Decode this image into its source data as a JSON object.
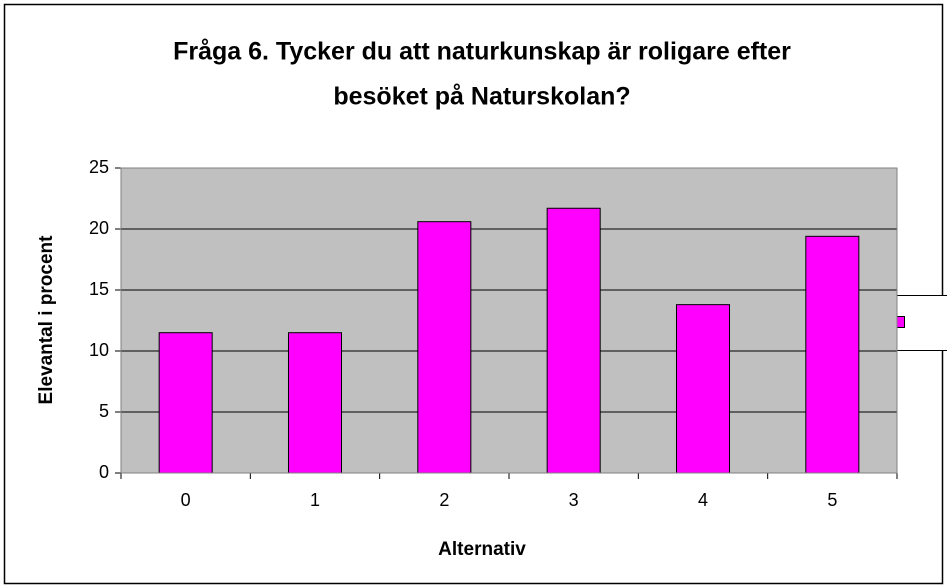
{
  "chart_data": {
    "type": "bar",
    "title": [
      "Fråga 6. Tycker du att naturkunskap är roligare efter",
      "besöket på Naturskolan?"
    ],
    "y_label": "Elevantal i procent",
    "x_label": "Alternativ",
    "categories": [
      "0",
      "1",
      "2",
      "3",
      "4",
      "5"
    ],
    "values": [
      11.5,
      11.5,
      20.6,
      21.7,
      13.8,
      19.4
    ],
    "color": "#ff00ff",
    "plot_background": "#c0c0c0",
    "ylim": [
      0,
      25
    ],
    "yticks": [
      0,
      5,
      10,
      15,
      20,
      25
    ],
    "grid": true,
    "legend": "right"
  }
}
